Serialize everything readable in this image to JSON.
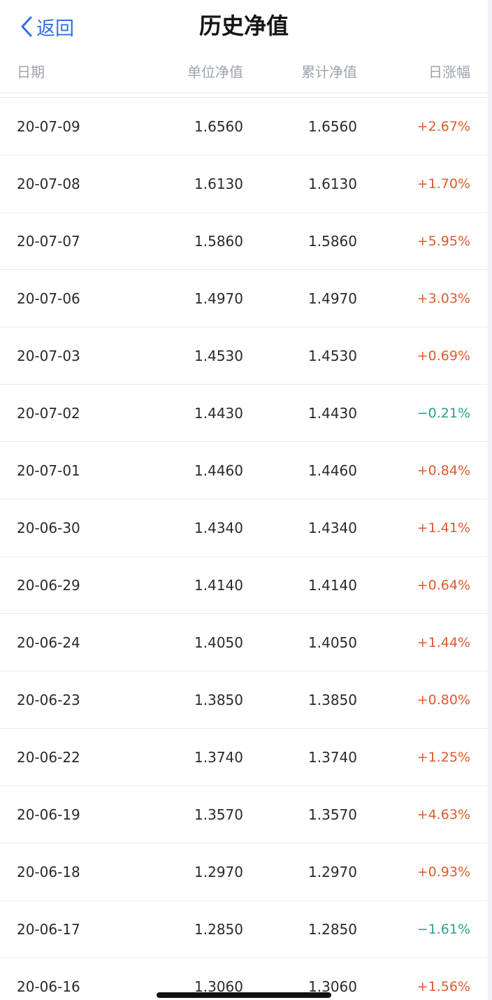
{
  "navbar": {
    "back_label": "返回",
    "title": "历史净值"
  },
  "table": {
    "headers": {
      "date": "日期",
      "unit_nav": "单位净值",
      "acc_nav": "累计净值",
      "daily_change": "日涨幅"
    },
    "rows": [
      {
        "date": "20-07-09",
        "unit_nav": "1.6560",
        "acc_nav": "1.6560",
        "change": "+2.67%"
      },
      {
        "date": "20-07-08",
        "unit_nav": "1.6130",
        "acc_nav": "1.6130",
        "change": "+1.70%"
      },
      {
        "date": "20-07-07",
        "unit_nav": "1.5860",
        "acc_nav": "1.5860",
        "change": "+5.95%"
      },
      {
        "date": "20-07-06",
        "unit_nav": "1.4970",
        "acc_nav": "1.4970",
        "change": "+3.03%"
      },
      {
        "date": "20-07-03",
        "unit_nav": "1.4530",
        "acc_nav": "1.4530",
        "change": "+0.69%"
      },
      {
        "date": "20-07-02",
        "unit_nav": "1.4430",
        "acc_nav": "1.4430",
        "change": "−0.21%"
      },
      {
        "date": "20-07-01",
        "unit_nav": "1.4460",
        "acc_nav": "1.4460",
        "change": "+0.84%"
      },
      {
        "date": "20-06-30",
        "unit_nav": "1.4340",
        "acc_nav": "1.4340",
        "change": "+1.41%"
      },
      {
        "date": "20-06-29",
        "unit_nav": "1.4140",
        "acc_nav": "1.4140",
        "change": "+0.64%"
      },
      {
        "date": "20-06-24",
        "unit_nav": "1.4050",
        "acc_nav": "1.4050",
        "change": "+1.44%"
      },
      {
        "date": "20-06-23",
        "unit_nav": "1.3850",
        "acc_nav": "1.3850",
        "change": "+0.80%"
      },
      {
        "date": "20-06-22",
        "unit_nav": "1.3740",
        "acc_nav": "1.3740",
        "change": "+1.25%"
      },
      {
        "date": "20-06-19",
        "unit_nav": "1.3570",
        "acc_nav": "1.3570",
        "change": "+4.63%"
      },
      {
        "date": "20-06-18",
        "unit_nav": "1.2970",
        "acc_nav": "1.2970",
        "change": "+0.93%"
      },
      {
        "date": "20-06-17",
        "unit_nav": "1.2850",
        "acc_nav": "1.2850",
        "change": "−1.61%"
      },
      {
        "date": "20-06-16",
        "unit_nav": "1.3060",
        "acc_nav": "1.3060",
        "change": "+1.56%"
      }
    ]
  },
  "colors": {
    "accent": "#2f6fe8",
    "rise": "#e05a2b",
    "fall": "#2aa08c",
    "text": "#2a2a2a",
    "header_text": "#9ea3ad"
  },
  "icons": {
    "back": "chevron-left-icon"
  }
}
